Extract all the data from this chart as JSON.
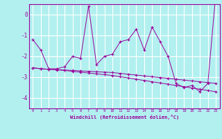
{
  "title": "",
  "xlabel": "Windchill (Refroidissement éolien,°C)",
  "bg_color": "#b2f0f0",
  "line_color": "#990099",
  "grid_color": "#ffffff",
  "x_ticks": [
    0,
    1,
    2,
    3,
    4,
    5,
    6,
    7,
    8,
    9,
    10,
    11,
    12,
    13,
    14,
    15,
    16,
    17,
    18,
    19,
    20,
    21,
    22,
    23
  ],
  "ylim": [
    -4.5,
    0.5
  ],
  "yticks": [
    0,
    -1,
    -2,
    -3,
    -4
  ],
  "line1": [
    -1.2,
    -1.7,
    -2.6,
    -2.6,
    -2.5,
    -2.0,
    -2.1,
    0.4,
    -2.4,
    -2.0,
    -1.9,
    -1.3,
    -1.2,
    -0.7,
    -1.7,
    -0.6,
    -1.3,
    -2.0,
    -3.3,
    -3.5,
    -3.4,
    -3.7,
    -3.3,
    1.0
  ],
  "line2": [
    -2.55,
    -2.6,
    -2.62,
    -2.64,
    -2.66,
    -2.68,
    -2.7,
    -2.72,
    -2.74,
    -2.76,
    -2.78,
    -2.82,
    -2.86,
    -2.9,
    -2.94,
    -2.98,
    -3.02,
    -3.06,
    -3.1,
    -3.14,
    -3.18,
    -3.22,
    -3.26,
    -3.3
  ],
  "line3": [
    -2.55,
    -2.6,
    -2.62,
    -2.65,
    -2.68,
    -2.72,
    -2.76,
    -2.8,
    -2.84,
    -2.88,
    -2.92,
    -2.98,
    -3.04,
    -3.1,
    -3.16,
    -3.22,
    -3.28,
    -3.34,
    -3.4,
    -3.46,
    -3.52,
    -3.58,
    -3.64,
    -3.7
  ]
}
